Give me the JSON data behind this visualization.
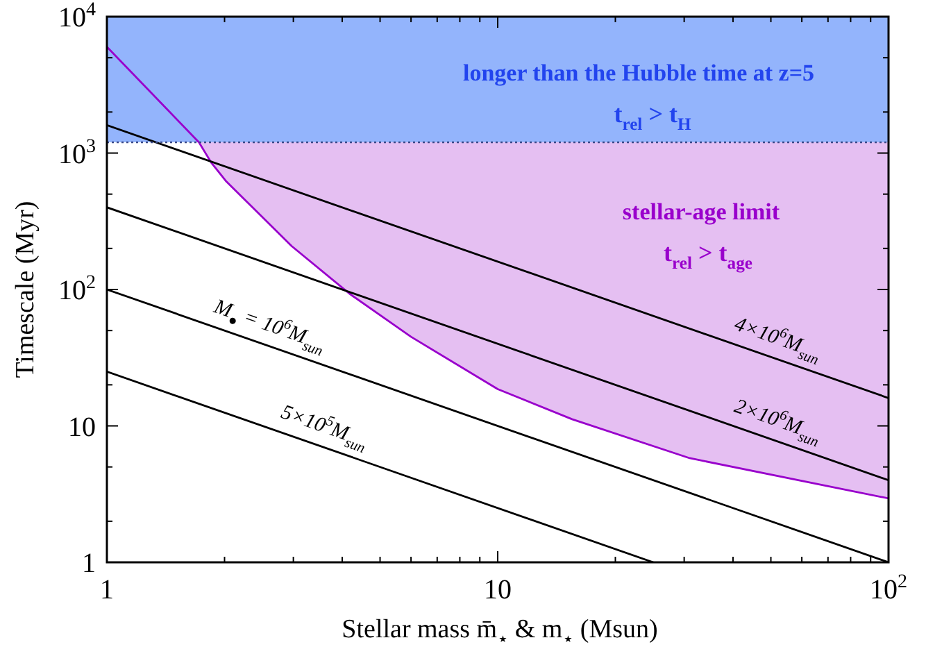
{
  "chart_data": {
    "type": "line",
    "xlabel": "Stellar mass m̄$_{⋆}$ & m$_{⋆}$ (Msun)",
    "ylabel": "Timescale (Myr)",
    "log": "xy",
    "xlim": [
      1,
      100
    ],
    "ylim": [
      1,
      10000
    ],
    "xticks": [
      1,
      {
        "value": 2,
        "label": null
      },
      {
        "value": 3,
        "label": null
      },
      {
        "value": 4,
        "label": null
      },
      {
        "value": 5,
        "label": null
      },
      {
        "value": 6,
        "label": null
      },
      {
        "value": 7,
        "label": null
      },
      {
        "value": 8,
        "label": null
      },
      {
        "value": 9,
        "label": null
      },
      10,
      {
        "value": 20,
        "label": null
      },
      {
        "value": 30,
        "label": null
      },
      {
        "value": 40,
        "label": null
      },
      {
        "value": 50,
        "label": null
      },
      {
        "value": 60,
        "label": null
      },
      {
        "value": 70,
        "label": null
      },
      {
        "value": 80,
        "label": null
      },
      {
        "value": 90,
        "label": null
      },
      {
        "value": 100,
        "label": "10$^{2}$"
      }
    ],
    "yticks": [
      1,
      {
        "value": 2,
        "label": null
      },
      {
        "value": 5,
        "label": null
      },
      10,
      {
        "value": 20,
        "label": null
      },
      {
        "value": 50,
        "label": null
      },
      {
        "value": 100,
        "label": "10$^{2}$"
      },
      {
        "value": 200,
        "label": null
      },
      {
        "value": 500,
        "label": null
      },
      {
        "value": 1000,
        "label": "10$^{3}$"
      },
      {
        "value": 2000,
        "label": null
      },
      {
        "value": 5000,
        "label": null
      },
      {
        "value": 10000,
        "label": "10$^{4}$"
      }
    ],
    "bands": [
      {
        "axis": "y",
        "from": 1200,
        "to": 10000,
        "label": "longer than the Hubble time at z=5",
        "color": "#93b4fc"
      }
    ],
    "ref_lines": [
      {
        "axis": "y",
        "value": 1200,
        "line_style": "dotted",
        "color": "#3a4a8a"
      }
    ],
    "annotations": [
      "t$_{rel}$ > t$_{H}$",
      "t$_{rel}$ > t$_{age}$"
    ],
    "series": [
      {
        "name": "stellar-age limit",
        "color": "#9900cc",
        "x": [
          1,
          1.72,
          1.85,
          2.02,
          2.97,
          4.2,
          6,
          10,
          15.5,
          31,
          100
        ],
        "values": [
          6000,
          1200,
          850,
          620,
          208,
          92,
          45,
          18.6,
          11.2,
          5.8,
          2.94
        ],
        "lower": [
          null,
          1200,
          850,
          620,
          208,
          92,
          45,
          18.6,
          11.2,
          5.8,
          2.94
        ],
        "upper": [
          null,
          1200,
          1200,
          1200,
          1200,
          1200,
          1200,
          1200,
          1200,
          1200,
          1200
        ]
      },
      {
        "name": "4×10$^{6}$M$_{sun}$",
        "color": "#000000",
        "x": [
          1,
          100
        ],
        "values": [
          1600,
          16
        ]
      },
      {
        "name": "2×10$^{6}$M$_{sun}$",
        "color": "#000000",
        "x": [
          1,
          100
        ],
        "values": [
          400,
          4
        ]
      },
      {
        "name": "M$_{●}$ = 10$^{6}$M$_{sun}$",
        "color": "#000000",
        "x": [
          1,
          100
        ],
        "values": [
          100,
          1
        ]
      },
      {
        "name": "5×10$^{5}$M$_{sun}$",
        "color": "#000000",
        "x": [
          1,
          25
        ],
        "values": [
          25,
          1
        ]
      }
    ]
  }
}
